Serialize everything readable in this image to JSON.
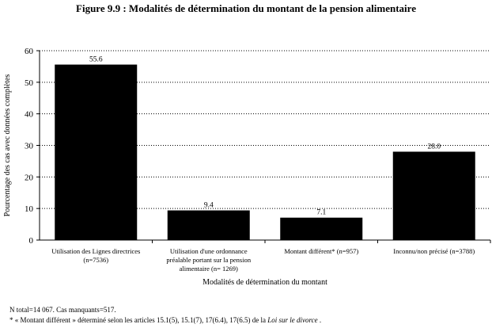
{
  "chart_data": {
    "type": "bar",
    "title": "Figure 9.9 : Modalités de détermination du montant de la pension alimentaire",
    "xlabel": "Modalités de détermination du montant",
    "ylabel": "Pourcentage des cas avec données complètes",
    "ylim": [
      0,
      60
    ],
    "yticks": [
      0,
      10,
      20,
      30,
      40,
      50,
      60
    ],
    "grid": "horizontal dotted",
    "bar_color": "#000000",
    "categories": [
      [
        "Utilisation des Lignes directrices",
        "(n=7536)"
      ],
      [
        "Utilisation d'une ordonnance",
        "préalable portant sur la pension",
        "alimentaire (n= 1269)"
      ],
      [
        "Montant différent* (n=957)"
      ],
      [
        "Inconnu/non précisé (n=3788)"
      ]
    ],
    "values": [
      55.6,
      9.4,
      7.1,
      28.0
    ],
    "value_labels": [
      "55.6",
      "9.4",
      "7.1",
      "28.0"
    ]
  },
  "notes": {
    "line1": "N total=14 067.  Cas manquants=517.",
    "line2_prefix": "* « Montant différent » déterminé selon les articles 15.1(5), 15.1(7), 17(6.4), 17(6.5) de la ",
    "line2_italic": "Loi sur le divorce",
    "line2_suffix": " ."
  }
}
